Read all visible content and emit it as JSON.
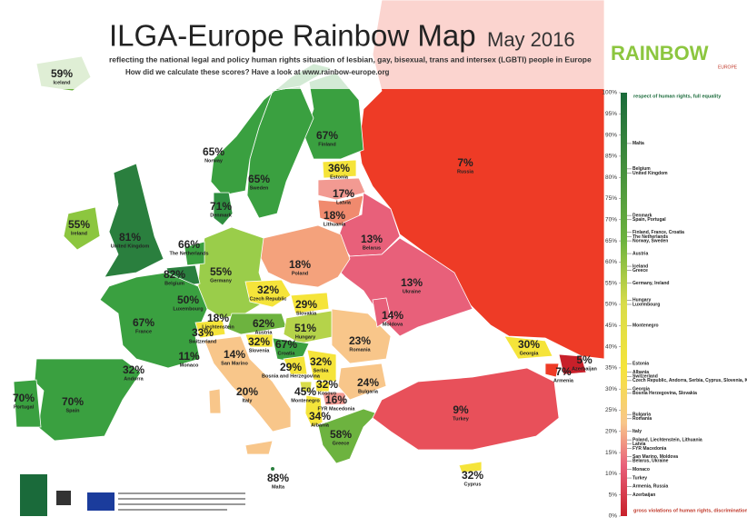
{
  "header": {
    "title": "ILGA-Europe Rainbow Map",
    "date": "May 2016",
    "subtitle": "reflecting the national legal and policy human rights situation of lesbian, gay, bisexual, trans and intersex (LGBTI) people in Europe",
    "note": "How did we calculate these scores? Have a look at www.rainbow-europe.org",
    "logo": "RAINBOW",
    "logo_sub": "EUROPE"
  },
  "countries": [
    {
      "name": "Iceland",
      "score": "59%"
    },
    {
      "name": "Norway",
      "score": "65%"
    },
    {
      "name": "Finland",
      "score": "67%"
    },
    {
      "name": "Sweden",
      "score": "65%"
    },
    {
      "name": "Estonia",
      "score": "36%"
    },
    {
      "name": "Russia",
      "score": "7%"
    },
    {
      "name": "Latvia",
      "score": "17%"
    },
    {
      "name": "Denmark",
      "score": "71%"
    },
    {
      "name": "Lithuania",
      "score": "18%"
    },
    {
      "name": "Ireland",
      "score": "55%"
    },
    {
      "name": "United Kingdom",
      "score": "81%"
    },
    {
      "name": "The Netherlands",
      "score": "66%"
    },
    {
      "name": "Belarus",
      "score": "13%"
    },
    {
      "name": "Belgium",
      "score": "82%"
    },
    {
      "name": "Germany",
      "score": "55%"
    },
    {
      "name": "Poland",
      "score": "18%"
    },
    {
      "name": "Luxembourg",
      "score": "50%"
    },
    {
      "name": "Czech Republic",
      "score": "32%"
    },
    {
      "name": "Slovakia",
      "score": "29%"
    },
    {
      "name": "Ukraine",
      "score": "13%"
    },
    {
      "name": "Moldova",
      "score": "14%"
    },
    {
      "name": "Liechtenstein",
      "score": "18%"
    },
    {
      "name": "Austria",
      "score": "62%"
    },
    {
      "name": "Hungary",
      "score": "51%"
    },
    {
      "name": "Romania",
      "score": "23%"
    },
    {
      "name": "France",
      "score": "67%"
    },
    {
      "name": "Switzerland",
      "score": "33%"
    },
    {
      "name": "Slovenia",
      "score": "32%"
    },
    {
      "name": "Croatia",
      "score": "67%"
    },
    {
      "name": "Serbia",
      "score": "32%"
    },
    {
      "name": "San Marino",
      "score": "14%"
    },
    {
      "name": "Monaco",
      "score": "11%"
    },
    {
      "name": "Bosnia and Herzegovina",
      "score": "29%"
    },
    {
      "name": "Andorra",
      "score": "32%"
    },
    {
      "name": "Montenegro",
      "score": "45%"
    },
    {
      "name": "Kosovo",
      "score": "32%"
    },
    {
      "name": "Bulgaria",
      "score": "24%"
    },
    {
      "name": "Georgia",
      "score": "30%"
    },
    {
      "name": "Azerbaijan",
      "score": "5%"
    },
    {
      "name": "Armenia",
      "score": "7%"
    },
    {
      "name": "Italy",
      "score": "20%"
    },
    {
      "name": "Portugal",
      "score": "70%"
    },
    {
      "name": "Spain",
      "score": "70%"
    },
    {
      "name": "FYR Macedonia",
      "score": "16%"
    },
    {
      "name": "Albania",
      "score": "34%"
    },
    {
      "name": "Turkey",
      "score": "9%"
    },
    {
      "name": "Greece",
      "score": "58%"
    },
    {
      "name": "Malta",
      "score": "88%"
    },
    {
      "name": "Cyprus",
      "score": "32%"
    }
  ],
  "scale": {
    "top_label": "respect of human rights, full equality",
    "bottom_label": "gross violations of human rights, discrimination",
    "ticks": [
      "100%",
      "95%",
      "90%",
      "85%",
      "80%",
      "75%",
      "70%",
      "65%",
      "60%",
      "55%",
      "50%",
      "45%",
      "40%",
      "35%",
      "30%",
      "25%",
      "20%",
      "15%",
      "10%",
      "5%",
      "0%"
    ],
    "entries": [
      {
        "label": "Malta",
        "value": 88
      },
      {
        "label": "Belgium",
        "value": 82
      },
      {
        "label": "United Kingdom",
        "value": 81
      },
      {
        "label": "Denmark",
        "value": 71
      },
      {
        "label": "Spain, Portugal",
        "value": 70
      },
      {
        "label": "Finland, France, Croatia",
        "value": 67
      },
      {
        "label": "The Netherlands",
        "value": 66
      },
      {
        "label": "Norway, Sweden",
        "value": 65
      },
      {
        "label": "Austria",
        "value": 62
      },
      {
        "label": "Iceland",
        "value": 59
      },
      {
        "label": "Greece",
        "value": 58
      },
      {
        "label": "Germany, Ireland",
        "value": 55
      },
      {
        "label": "Hungary",
        "value": 51
      },
      {
        "label": "Luxembourg",
        "value": 50
      },
      {
        "label": "Montenegro",
        "value": 45
      },
      {
        "label": "Estonia",
        "value": 36
      },
      {
        "label": "Albania",
        "value": 34
      },
      {
        "label": "Switzerland",
        "value": 33
      },
      {
        "label": "Czech Republic, Andorra, Serbia, Cyprus, Slovenia, Kosovo",
        "value": 32
      },
      {
        "label": "Georgia",
        "value": 30
      },
      {
        "label": "Bosnia Herzegovina, Slovakia",
        "value": 29
      },
      {
        "label": "Bulgaria",
        "value": 24
      },
      {
        "label": "Romania",
        "value": 23
      },
      {
        "label": "Italy",
        "value": 20
      },
      {
        "label": "Poland, Liechtenstein, Lithuania",
        "value": 18
      },
      {
        "label": "Latvia",
        "value": 17
      },
      {
        "label": "FYR Macedonia",
        "value": 16
      },
      {
        "label": "San Marino, Moldova",
        "value": 14
      },
      {
        "label": "Belarus, Ukraine",
        "value": 13
      },
      {
        "label": "Monaco",
        "value": 11
      },
      {
        "label": "Turkey",
        "value": 9
      },
      {
        "label": "Armenia, Russia",
        "value": 7
      },
      {
        "label": "Azerbaijan",
        "value": 5
      }
    ]
  }
}
